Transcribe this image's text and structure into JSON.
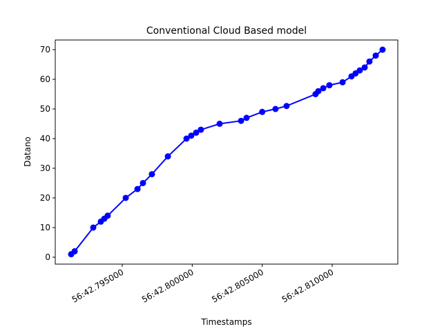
{
  "chart_data": {
    "type": "line",
    "title": "Conventional Cloud Based model",
    "xlabel": "Timestamps",
    "ylabel": "Datano",
    "x": [
      42.79135,
      42.7916,
      42.79293,
      42.79347,
      42.79372,
      42.79396,
      42.79525,
      42.79609,
      42.79648,
      42.79712,
      42.79826,
      42.79959,
      42.79993,
      42.80028,
      42.80062,
      42.80196,
      42.80349,
      42.80388,
      42.805,
      42.80595,
      42.80674,
      42.80881,
      42.80901,
      42.80936,
      42.8098,
      42.81074,
      42.81138,
      42.81167,
      42.81197,
      42.81232,
      42.81266,
      42.81311,
      42.8136
    ],
    "series": [
      {
        "color": "#0000ff",
        "values": [
          1,
          2,
          10,
          12,
          13,
          14,
          20,
          23,
          25,
          28,
          34,
          40,
          41,
          42,
          43,
          45,
          46,
          47,
          49,
          50,
          51,
          55,
          56,
          57,
          58,
          59,
          61,
          62,
          63,
          64,
          66,
          68,
          70
        ]
      }
    ],
    "xlim": [
      42.790214,
      42.814687
    ],
    "ylim": [
      -2.33,
      73.26
    ],
    "xticks": [
      {
        "value": 42.795,
        "label": "56:42.795000"
      },
      {
        "value": 42.8,
        "label": "56:42.800000"
      },
      {
        "value": 42.805,
        "label": "56:42.805000"
      },
      {
        "value": 42.81,
        "label": "56:42.810000"
      }
    ],
    "yticks": [
      0,
      10,
      20,
      30,
      40,
      50,
      60,
      70
    ],
    "grid": false
  }
}
